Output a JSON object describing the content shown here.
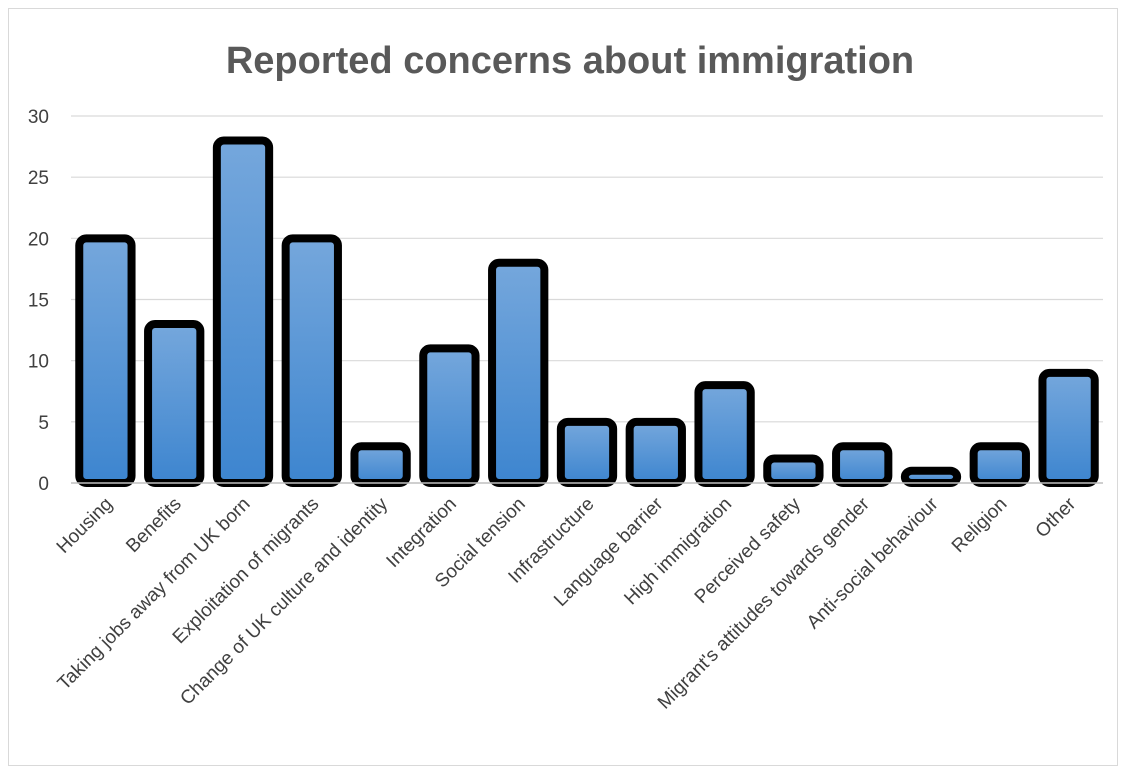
{
  "chart_data": {
    "type": "bar",
    "title": "Reported concerns about immigration",
    "xlabel": "",
    "ylabel": "",
    "ylim": [
      0,
      30
    ],
    "yticks": [
      0,
      5,
      10,
      15,
      20,
      25,
      30
    ],
    "grid": true,
    "legend": "none",
    "categories": [
      "Housing",
      "Benefits",
      "Taking jobs away from UK born",
      "Exploitation of migrants",
      "Change of UK culture and identity",
      "Integration",
      "Social tension",
      "Infrastructure",
      "Language barrier",
      "High immigration",
      "Perceived safety",
      "Migrant's attitudes towards gender",
      "Anti-social behaviour",
      "Religion",
      "Other"
    ],
    "values": [
      20,
      13,
      28,
      20,
      3,
      11,
      18,
      5,
      5,
      8,
      2,
      3,
      1,
      3,
      9
    ],
    "colors": {
      "bar_top": "#75a7dc",
      "bar_bottom": "#3d85cf",
      "bar_outline": "#000000"
    }
  }
}
